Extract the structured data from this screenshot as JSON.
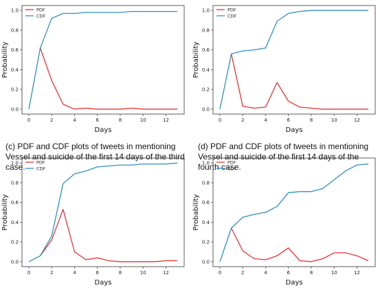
{
  "captions": [
    "(c) PDF and CDF plots of tweets in mentioning Vessel and suicide of the first 14 days of the third case.",
    "(d) PDF and CDF plots of tweets in mentioning Vessel and suicide of the first 14 days of the fourth case."
  ],
  "colors": {
    "pdf": "#e8302f",
    "cdf": "#2d8fbd"
  },
  "chart_data": [
    {
      "type": "line",
      "xlabel": "Days",
      "ylabel": "Probability",
      "xlim": [
        -0.6,
        13.6
      ],
      "ylim": [
        -0.05,
        1.05
      ],
      "xticks": [
        0,
        2,
        4,
        6,
        8,
        10,
        12
      ],
      "yticks": [
        "0.0",
        "0.2",
        "0.4",
        "0.6",
        "0.8",
        "1.0"
      ],
      "legend": "top-left",
      "x": [
        0,
        1,
        2,
        3,
        4,
        5,
        6,
        7,
        8,
        9,
        10,
        11,
        12,
        13
      ],
      "series": [
        {
          "name": "PDF",
          "values": [
            null,
            0.62,
            0.29,
            0.05,
            0.0,
            0.01,
            0.0,
            0.0,
            0.0,
            0.01,
            0.0,
            0.0,
            0.0,
            0.0
          ]
        },
        {
          "name": "CDF",
          "values": [
            0.0,
            0.62,
            0.92,
            0.97,
            0.97,
            0.98,
            0.98,
            0.98,
            0.98,
            0.99,
            0.99,
            0.99,
            0.99,
            0.99
          ]
        }
      ]
    },
    {
      "type": "line",
      "xlabel": "Days",
      "ylabel": "Probability",
      "xlim": [
        -0.6,
        13.6
      ],
      "ylim": [
        -0.05,
        1.05
      ],
      "xticks": [
        0,
        2,
        4,
        6,
        8,
        10,
        12
      ],
      "yticks": [
        "0.0",
        "0.2",
        "0.4",
        "0.6",
        "0.8",
        "1.0"
      ],
      "legend": "top-left",
      "x": [
        0,
        1,
        2,
        3,
        4,
        5,
        6,
        7,
        8,
        9,
        10,
        11,
        12,
        13
      ],
      "series": [
        {
          "name": "PDF",
          "values": [
            null,
            0.56,
            0.03,
            0.01,
            0.02,
            0.27,
            0.08,
            0.02,
            0.01,
            0.0,
            0.0,
            0.0,
            0.0,
            0.0
          ]
        },
        {
          "name": "CDF",
          "values": [
            0.0,
            0.56,
            0.59,
            0.6,
            0.62,
            0.89,
            0.97,
            0.99,
            1.0,
            1.0,
            1.0,
            1.0,
            1.0,
            1.0
          ]
        }
      ]
    },
    {
      "type": "line",
      "xlabel": "Days",
      "ylabel": "Probability",
      "xlim": [
        -0.6,
        13.6
      ],
      "ylim": [
        -0.05,
        1.05
      ],
      "xticks": [
        0,
        2,
        4,
        6,
        8,
        10,
        12
      ],
      "yticks": [
        "0.0",
        "0.2",
        "0.4",
        "0.6",
        "0.8",
        "1.0"
      ],
      "legend": "top-left",
      "x": [
        0,
        1,
        2,
        3,
        4,
        5,
        6,
        7,
        8,
        9,
        10,
        11,
        12,
        13
      ],
      "series": [
        {
          "name": "PDF",
          "values": [
            null,
            0.06,
            0.22,
            0.53,
            0.1,
            0.02,
            0.04,
            0.01,
            0.0,
            0.0,
            0.0,
            0.0,
            0.01,
            0.01
          ]
        },
        {
          "name": "CDF",
          "values": [
            0.0,
            0.06,
            0.26,
            0.79,
            0.89,
            0.92,
            0.96,
            0.97,
            0.98,
            0.98,
            0.99,
            0.99,
            0.99,
            1.0
          ]
        }
      ]
    },
    {
      "type": "line",
      "xlabel": "Days",
      "ylabel": "Probability",
      "xlim": [
        -0.6,
        13.6
      ],
      "ylim": [
        -0.05,
        1.05
      ],
      "xticks": [
        0,
        2,
        4,
        6,
        8,
        10,
        12
      ],
      "yticks": [
        "0.0",
        "0.2",
        "0.4",
        "0.6",
        "0.8",
        "1.0"
      ],
      "legend": "top-left",
      "x": [
        0,
        1,
        2,
        3,
        4,
        5,
        6,
        7,
        8,
        9,
        10,
        11,
        12,
        13
      ],
      "series": [
        {
          "name": "PDF",
          "values": [
            null,
            0.34,
            0.11,
            0.03,
            0.02,
            0.06,
            0.14,
            0.01,
            0.0,
            0.03,
            0.09,
            0.09,
            0.06,
            0.01
          ]
        },
        {
          "name": "CDF",
          "values": [
            0.0,
            0.34,
            0.45,
            0.48,
            0.5,
            0.56,
            0.7,
            0.71,
            0.71,
            0.74,
            0.83,
            0.92,
            0.98,
            0.99
          ]
        }
      ]
    }
  ]
}
